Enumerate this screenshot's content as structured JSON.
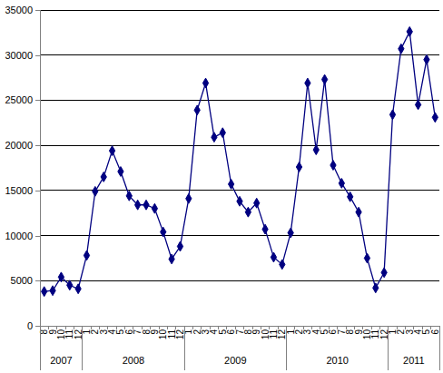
{
  "chart_data": {
    "type": "line",
    "color": "#000080",
    "marker": "diamond",
    "line_style": "solid",
    "grid": true,
    "categories": [
      "8",
      "9",
      "10",
      "11",
      "12",
      "1",
      "2",
      "3",
      "4",
      "5",
      "6",
      "7",
      "8",
      "9",
      "10",
      "11",
      "12",
      "1",
      "2",
      "3",
      "4",
      "5",
      "6",
      "7",
      "8",
      "9",
      "10",
      "11",
      "12",
      "1",
      "2",
      "3",
      "4",
      "5",
      "6",
      "7",
      "8",
      "9",
      "10",
      "11",
      "12",
      "1",
      "2",
      "3",
      "4",
      "5",
      "6"
    ],
    "values": [
      3800,
      3900,
      5400,
      4500,
      4100,
      7800,
      14900,
      16500,
      19400,
      17100,
      14400,
      13400,
      13400,
      13000,
      10400,
      7400,
      8800,
      14100,
      23900,
      26900,
      20900,
      21400,
      15700,
      13800,
      12600,
      13600,
      10700,
      7600,
      6800,
      10300,
      17600,
      26900,
      19500,
      27300,
      17800,
      15800,
      14300,
      12600,
      7500,
      4200,
      5900,
      23400,
      30700,
      32600,
      24500,
      29500,
      23100
    ],
    "year_groups": [
      {
        "label": "2007",
        "size": 5
      },
      {
        "label": "2008",
        "size": 12
      },
      {
        "label": "2009",
        "size": 12
      },
      {
        "label": "2010",
        "size": 12
      },
      {
        "label": "2011",
        "size": 6
      }
    ],
    "ylim": [
      0,
      35000
    ],
    "yticks": [
      0,
      5000,
      10000,
      15000,
      20000,
      25000,
      30000,
      35000
    ]
  }
}
